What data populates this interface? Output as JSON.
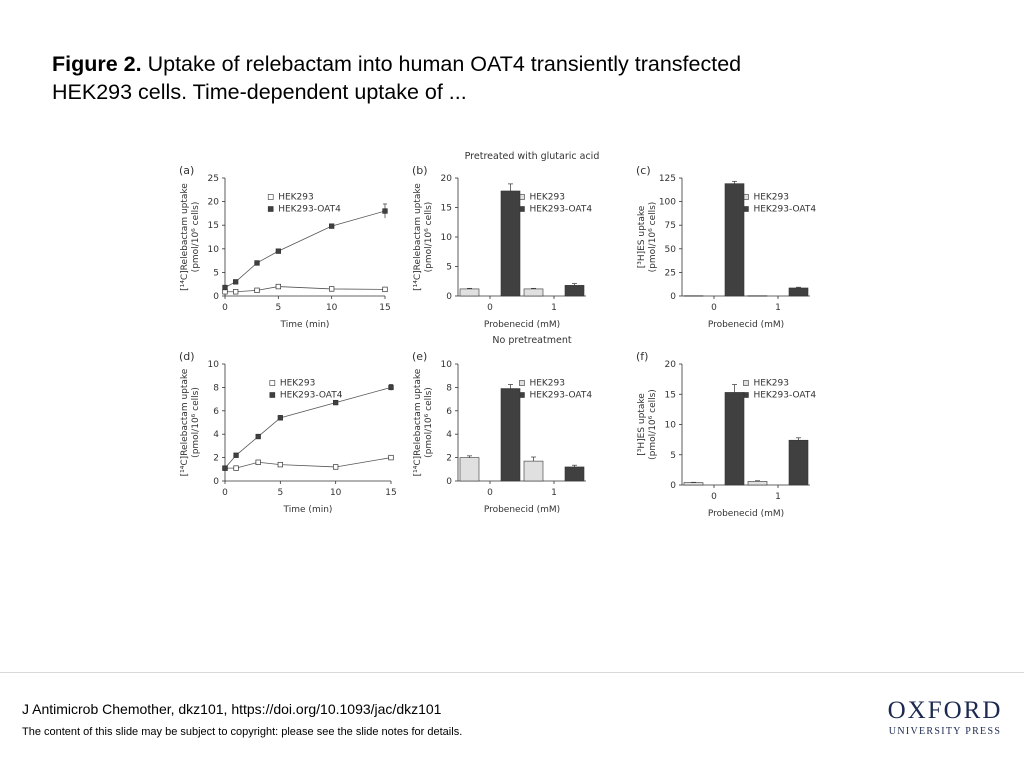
{
  "slide": {
    "title_bold": "Figure 2.",
    "title_rest": " Uptake of relebactam into human OAT4 transiently transfected HEK293 cells. Time-dependent uptake of ...",
    "citation": "J Antimicrob Chemother, dkz101, https://doi.org/10.1093/jac/dkz101",
    "copyright": "The content of this slide may be subject to copyright: please see the slide notes for details.",
    "logo_main": "OXFORD",
    "logo_sub": "UNIVERSITY PRESS"
  },
  "figure": {
    "section_top": "Pretreated with glutaric acid",
    "section_bottom": "No pretreatment"
  },
  "colors": {
    "open_marker": "#ffffff",
    "filled": "#404040",
    "light_bar": "#e0e0e0",
    "dark_bar": "#404040"
  },
  "chart_data": [
    {
      "panel": "(a)",
      "type": "line",
      "xlabel": "Time (min)",
      "ylabel_1": "[¹⁴C]Relebactam uptake",
      "ylabel_2": "(pmol/10⁶ cells)",
      "ylim": [
        0,
        25
      ],
      "yticks": [
        0,
        5,
        10,
        15,
        20,
        25
      ],
      "xticks": [
        0,
        5,
        10,
        15
      ],
      "xlim": [
        0,
        15
      ],
      "legend": "top-right",
      "series": [
        {
          "name": "HEK293",
          "marker": "open",
          "x": [
            0,
            1,
            3,
            5,
            10,
            15
          ],
          "y": [
            0.9,
            0.9,
            1.2,
            2.0,
            1.5,
            1.4
          ],
          "err": [
            0.1,
            0.1,
            0.1,
            0.3,
            0.2,
            0.2
          ]
        },
        {
          "name": "HEK293-OAT4",
          "marker": "filled",
          "x": [
            0,
            1,
            3,
            5,
            10,
            15
          ],
          "y": [
            1.8,
            3.0,
            7.0,
            9.5,
            14.8,
            18.0
          ],
          "err": [
            0.2,
            0.2,
            0.4,
            0.3,
            0.4,
            1.5
          ]
        }
      ]
    },
    {
      "panel": "(b)",
      "type": "bar",
      "xlabel": "Probenecid (mM)",
      "ylabel_1": "[¹⁴C]Relebactam uptake",
      "ylabel_2": "(pmol/10⁶ cells)",
      "categories": [
        "0",
        "1"
      ],
      "ylim": [
        0,
        20
      ],
      "yticks": [
        0,
        5,
        10,
        15,
        20
      ],
      "legend": "top-right",
      "series": [
        {
          "name": "HEK293",
          "values": [
            1.2,
            1.2
          ],
          "err": [
            0.1,
            0.1
          ]
        },
        {
          "name": "HEK293-OAT4",
          "values": [
            17.8,
            1.8
          ],
          "err": [
            1.2,
            0.3
          ]
        }
      ]
    },
    {
      "panel": "(c)",
      "type": "bar",
      "xlabel": "Probenecid (mM)",
      "ylabel_1": "[³H]ES uptake",
      "ylabel_2": "(pmol/10⁶ cells)",
      "categories": [
        "0",
        "1"
      ],
      "ylim": [
        0,
        125
      ],
      "yticks": [
        0,
        25,
        50,
        75,
        100,
        125
      ],
      "legend": "top-right",
      "series": [
        {
          "name": "HEK293",
          "values": [
            0.3,
            0.3
          ],
          "err": [
            0,
            0
          ]
        },
        {
          "name": "HEK293-OAT4",
          "values": [
            119,
            8.5
          ],
          "err": [
            2.5,
            0.8
          ]
        }
      ]
    },
    {
      "panel": "(d)",
      "type": "line",
      "xlabel": "Time (min)",
      "ylabel_1": "[¹⁴C]Relebactam uptake",
      "ylabel_2": "(pmol/10⁶ cells)",
      "ylim": [
        0,
        10
      ],
      "yticks": [
        0,
        2,
        4,
        6,
        8,
        10
      ],
      "xticks": [
        0,
        5,
        10,
        15
      ],
      "xlim": [
        0,
        15
      ],
      "legend": "top-right",
      "series": [
        {
          "name": "HEK293",
          "marker": "open",
          "x": [
            0,
            1,
            3,
            5,
            10,
            15
          ],
          "y": [
            1.1,
            1.1,
            1.6,
            1.4,
            1.2,
            2.0
          ],
          "err": [
            0.1,
            0.1,
            0.15,
            0.1,
            0.1,
            0.1
          ]
        },
        {
          "name": "HEK293-OAT4",
          "marker": "filled",
          "x": [
            0,
            1,
            3,
            5,
            10,
            15
          ],
          "y": [
            1.1,
            2.2,
            3.8,
            5.4,
            6.7,
            8.0
          ],
          "err": [
            0.1,
            0.1,
            0.15,
            0.2,
            0.15,
            0.25
          ]
        }
      ]
    },
    {
      "panel": "(e)",
      "type": "bar",
      "xlabel": "Probenecid (mM)",
      "ylabel_1": "[¹⁴C]Relebactam uptake",
      "ylabel_2": "(pmol/10⁶ cells)",
      "categories": [
        "0",
        "1"
      ],
      "ylim": [
        0,
        10
      ],
      "yticks": [
        0,
        2,
        4,
        6,
        8,
        10
      ],
      "legend": "top-right",
      "series": [
        {
          "name": "HEK293",
          "values": [
            2.0,
            1.7
          ],
          "err": [
            0.15,
            0.35
          ]
        },
        {
          "name": "HEK293-OAT4",
          "values": [
            7.9,
            1.2
          ],
          "err": [
            0.35,
            0.15
          ]
        }
      ]
    },
    {
      "panel": "(f)",
      "type": "bar",
      "xlabel": "Probenecid (mM)",
      "ylabel_1": "[³H]ES uptake",
      "ylabel_2": "(pmol/10⁶ cells)",
      "categories": [
        "0",
        "1"
      ],
      "ylim": [
        0,
        20
      ],
      "yticks": [
        0,
        5,
        10,
        15,
        20
      ],
      "legend": "top-right",
      "series": [
        {
          "name": "HEK293",
          "values": [
            0.4,
            0.6
          ],
          "err": [
            0.05,
            0.1
          ]
        },
        {
          "name": "HEK293-OAT4",
          "values": [
            15.3,
            7.4
          ],
          "err": [
            1.3,
            0.4
          ]
        }
      ]
    }
  ]
}
